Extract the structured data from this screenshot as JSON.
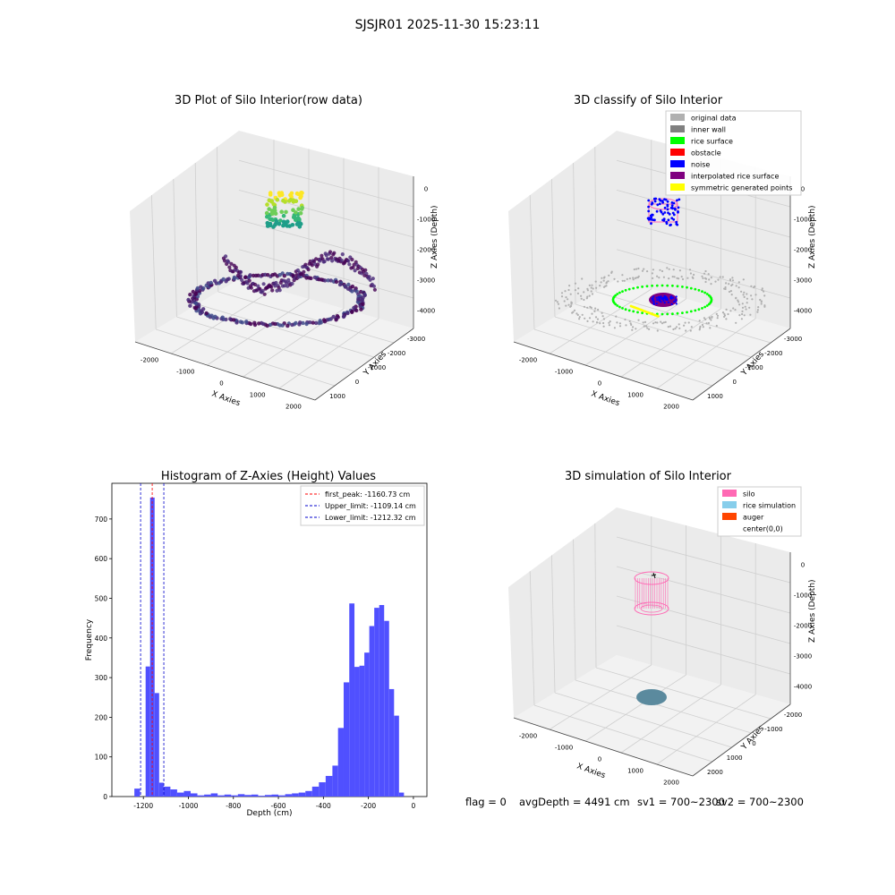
{
  "figure": {
    "suptitle": "SJSJR01 2025-11-30 15:23:11",
    "footer": {
      "flag": "flag = 0",
      "avgdepth": "avgDepth = 4491 cm",
      "sv1": "sv1 = 700~2300",
      "sv2": "sv2 = 700~2300"
    }
  },
  "colors": {
    "hist_bar": "#5050ff",
    "first_peak": "#ff0000",
    "limits": "#0000cc",
    "pane_floor": "#f2f2f2",
    "pane_wall": "#ebebeb",
    "grid": "#cfcfcf",
    "silo": "#ff69b4",
    "rice_simulation": "#87ceeb",
    "auger": "#ff4500"
  },
  "chart_data": [
    {
      "type": "scatter",
      "subtype": "3d-scatter",
      "title": "3D Plot of Silo Interior(row data)",
      "xlabel": "X Axies",
      "ylabel": "Y Axies",
      "zlabel": "Z Axies (Depth)",
      "x_ticks": [
        "-2000",
        "-1000",
        "0",
        "1000",
        "2000"
      ],
      "y_ticks": [
        "1000",
        "0",
        "-1000",
        "-2000",
        "-3000"
      ],
      "z_ticks": [
        "0",
        "-1000",
        "-2000",
        "-3000",
        "-4000"
      ],
      "colormap": "viridis",
      "description_of_data": [
        "upper cluster (yellow/green) near Z 0 to -1800",
        "bottom ring and cross band (purple/blue) near Z -3500 to -4500"
      ]
    },
    {
      "type": "scatter",
      "subtype": "3d-scatter",
      "title": "3D classify of Silo Interior",
      "xlabel": "X Axies",
      "ylabel": "Y Axies",
      "zlabel": "Z Axies (Depth)",
      "x_ticks": [
        "-2000",
        "-1000",
        "0",
        "1000",
        "2000"
      ],
      "y_ticks": [
        "1000",
        "0",
        "-1000",
        "-2000",
        "-3000"
      ],
      "z_ticks": [
        "0",
        "-1000",
        "-2000",
        "-3000",
        "-4000"
      ],
      "legend": [
        {
          "label": "original data",
          "color": "#b0b0b0"
        },
        {
          "label": "inner wall",
          "color": "#808080"
        },
        {
          "label": "rice surface",
          "color": "#00ff00"
        },
        {
          "label": "obstacle",
          "color": "#ff0000"
        },
        {
          "label": "noise",
          "color": "#0000ff"
        },
        {
          "label": "interpolated rice surface",
          "color": "#800080"
        },
        {
          "label": "symmetric generated points",
          "color": "#ffff00"
        }
      ],
      "legend_loc": "upper-right"
    },
    {
      "type": "bar",
      "subtype": "histogram",
      "title": "Histogram of Z-Axies (Height) Values",
      "xlabel": "Depth (cm)",
      "ylabel": "Frequency",
      "xlim": [
        -1340,
        60
      ],
      "ylim": [
        0,
        790
      ],
      "x_ticks": [
        -1200,
        -1000,
        -800,
        -600,
        -400,
        -200,
        0
      ],
      "y_ticks": [
        0,
        100,
        200,
        300,
        400,
        500,
        600,
        700
      ],
      "bins": [
        {
          "x0": -1240,
          "x1": -1215,
          "count": 20
        },
        {
          "x0": -1190,
          "x1": -1170,
          "count": 328
        },
        {
          "x0": -1170,
          "x1": -1150,
          "count": 754
        },
        {
          "x0": -1150,
          "x1": -1130,
          "count": 261
        },
        {
          "x0": -1130,
          "x1": -1110,
          "count": 35
        },
        {
          "x0": -1110,
          "x1": -1080,
          "count": 25
        },
        {
          "x0": -1080,
          "x1": -1050,
          "count": 18
        },
        {
          "x0": -1050,
          "x1": -1020,
          "count": 10
        },
        {
          "x0": -1020,
          "x1": -990,
          "count": 14
        },
        {
          "x0": -990,
          "x1": -960,
          "count": 8
        },
        {
          "x0": -960,
          "x1": -930,
          "count": 3
        },
        {
          "x0": -930,
          "x1": -900,
          "count": 5
        },
        {
          "x0": -900,
          "x1": -870,
          "count": 8
        },
        {
          "x0": -870,
          "x1": -840,
          "count": 3
        },
        {
          "x0": -840,
          "x1": -810,
          "count": 5
        },
        {
          "x0": -810,
          "x1": -780,
          "count": 3
        },
        {
          "x0": -780,
          "x1": -750,
          "count": 6
        },
        {
          "x0": -750,
          "x1": -720,
          "count": 4
        },
        {
          "x0": -720,
          "x1": -690,
          "count": 5
        },
        {
          "x0": -690,
          "x1": -660,
          "count": 2
        },
        {
          "x0": -660,
          "x1": -630,
          "count": 4
        },
        {
          "x0": -630,
          "x1": -600,
          "count": 5
        },
        {
          "x0": -600,
          "x1": -570,
          "count": 3
        },
        {
          "x0": -570,
          "x1": -540,
          "count": 6
        },
        {
          "x0": -540,
          "x1": -510,
          "count": 8
        },
        {
          "x0": -510,
          "x1": -480,
          "count": 10
        },
        {
          "x0": -480,
          "x1": -450,
          "count": 14
        },
        {
          "x0": -450,
          "x1": -420,
          "count": 25
        },
        {
          "x0": -420,
          "x1": -390,
          "count": 36
        },
        {
          "x0": -390,
          "x1": -360,
          "count": 52
        },
        {
          "x0": -360,
          "x1": -335,
          "count": 78
        },
        {
          "x0": -335,
          "x1": -310,
          "count": 173
        },
        {
          "x0": -310,
          "x1": -285,
          "count": 288
        },
        {
          "x0": -285,
          "x1": -262,
          "count": 487
        },
        {
          "x0": -262,
          "x1": -240,
          "count": 327
        },
        {
          "x0": -240,
          "x1": -218,
          "count": 330
        },
        {
          "x0": -218,
          "x1": -196,
          "count": 363
        },
        {
          "x0": -196,
          "x1": -174,
          "count": 430
        },
        {
          "x0": -174,
          "x1": -152,
          "count": 476
        },
        {
          "x0": -152,
          "x1": -130,
          "count": 483
        },
        {
          "x0": -130,
          "x1": -108,
          "count": 443
        },
        {
          "x0": -108,
          "x1": -86,
          "count": 271
        },
        {
          "x0": -86,
          "x1": -64,
          "count": 204
        },
        {
          "x0": -64,
          "x1": -42,
          "count": 10
        },
        {
          "x0": -42,
          "x1": -20,
          "count": 0
        }
      ],
      "lines": [
        {
          "label": "first_peak: -1160.73 cm",
          "x": -1160.73,
          "color": "#ff0000"
        },
        {
          "label": "Upper_limit: -1109.14 cm",
          "x": -1109.14,
          "color": "#0000cc"
        },
        {
          "label": "Lower_limit: -1212.32 cm",
          "x": -1212.32,
          "color": "#0000cc"
        }
      ],
      "legend_loc": "upper-right"
    },
    {
      "type": "scatter",
      "subtype": "3d-surface",
      "title": "3D simulation of Silo Interior",
      "xlabel": "X Axies",
      "ylabel": "Y Axies",
      "zlabel": "Z Axies (Depth)",
      "x_ticks": [
        "-2000",
        "-1000",
        "0",
        "1000",
        "2000"
      ],
      "y_ticks": [
        "2000",
        "1000",
        "0",
        "-1000",
        "-2000"
      ],
      "z_ticks": [
        "0",
        "-1000",
        "-2000",
        "-3000",
        "-4000"
      ],
      "legend": [
        {
          "label": "silo",
          "color": "#ff69b4"
        },
        {
          "label": "rice simulation",
          "color": "#87ceeb"
        },
        {
          "label": "auger",
          "color": "#ff4500"
        },
        {
          "label": "center(0,0)",
          "color": ""
        }
      ],
      "legend_loc": "upper-right"
    }
  ]
}
